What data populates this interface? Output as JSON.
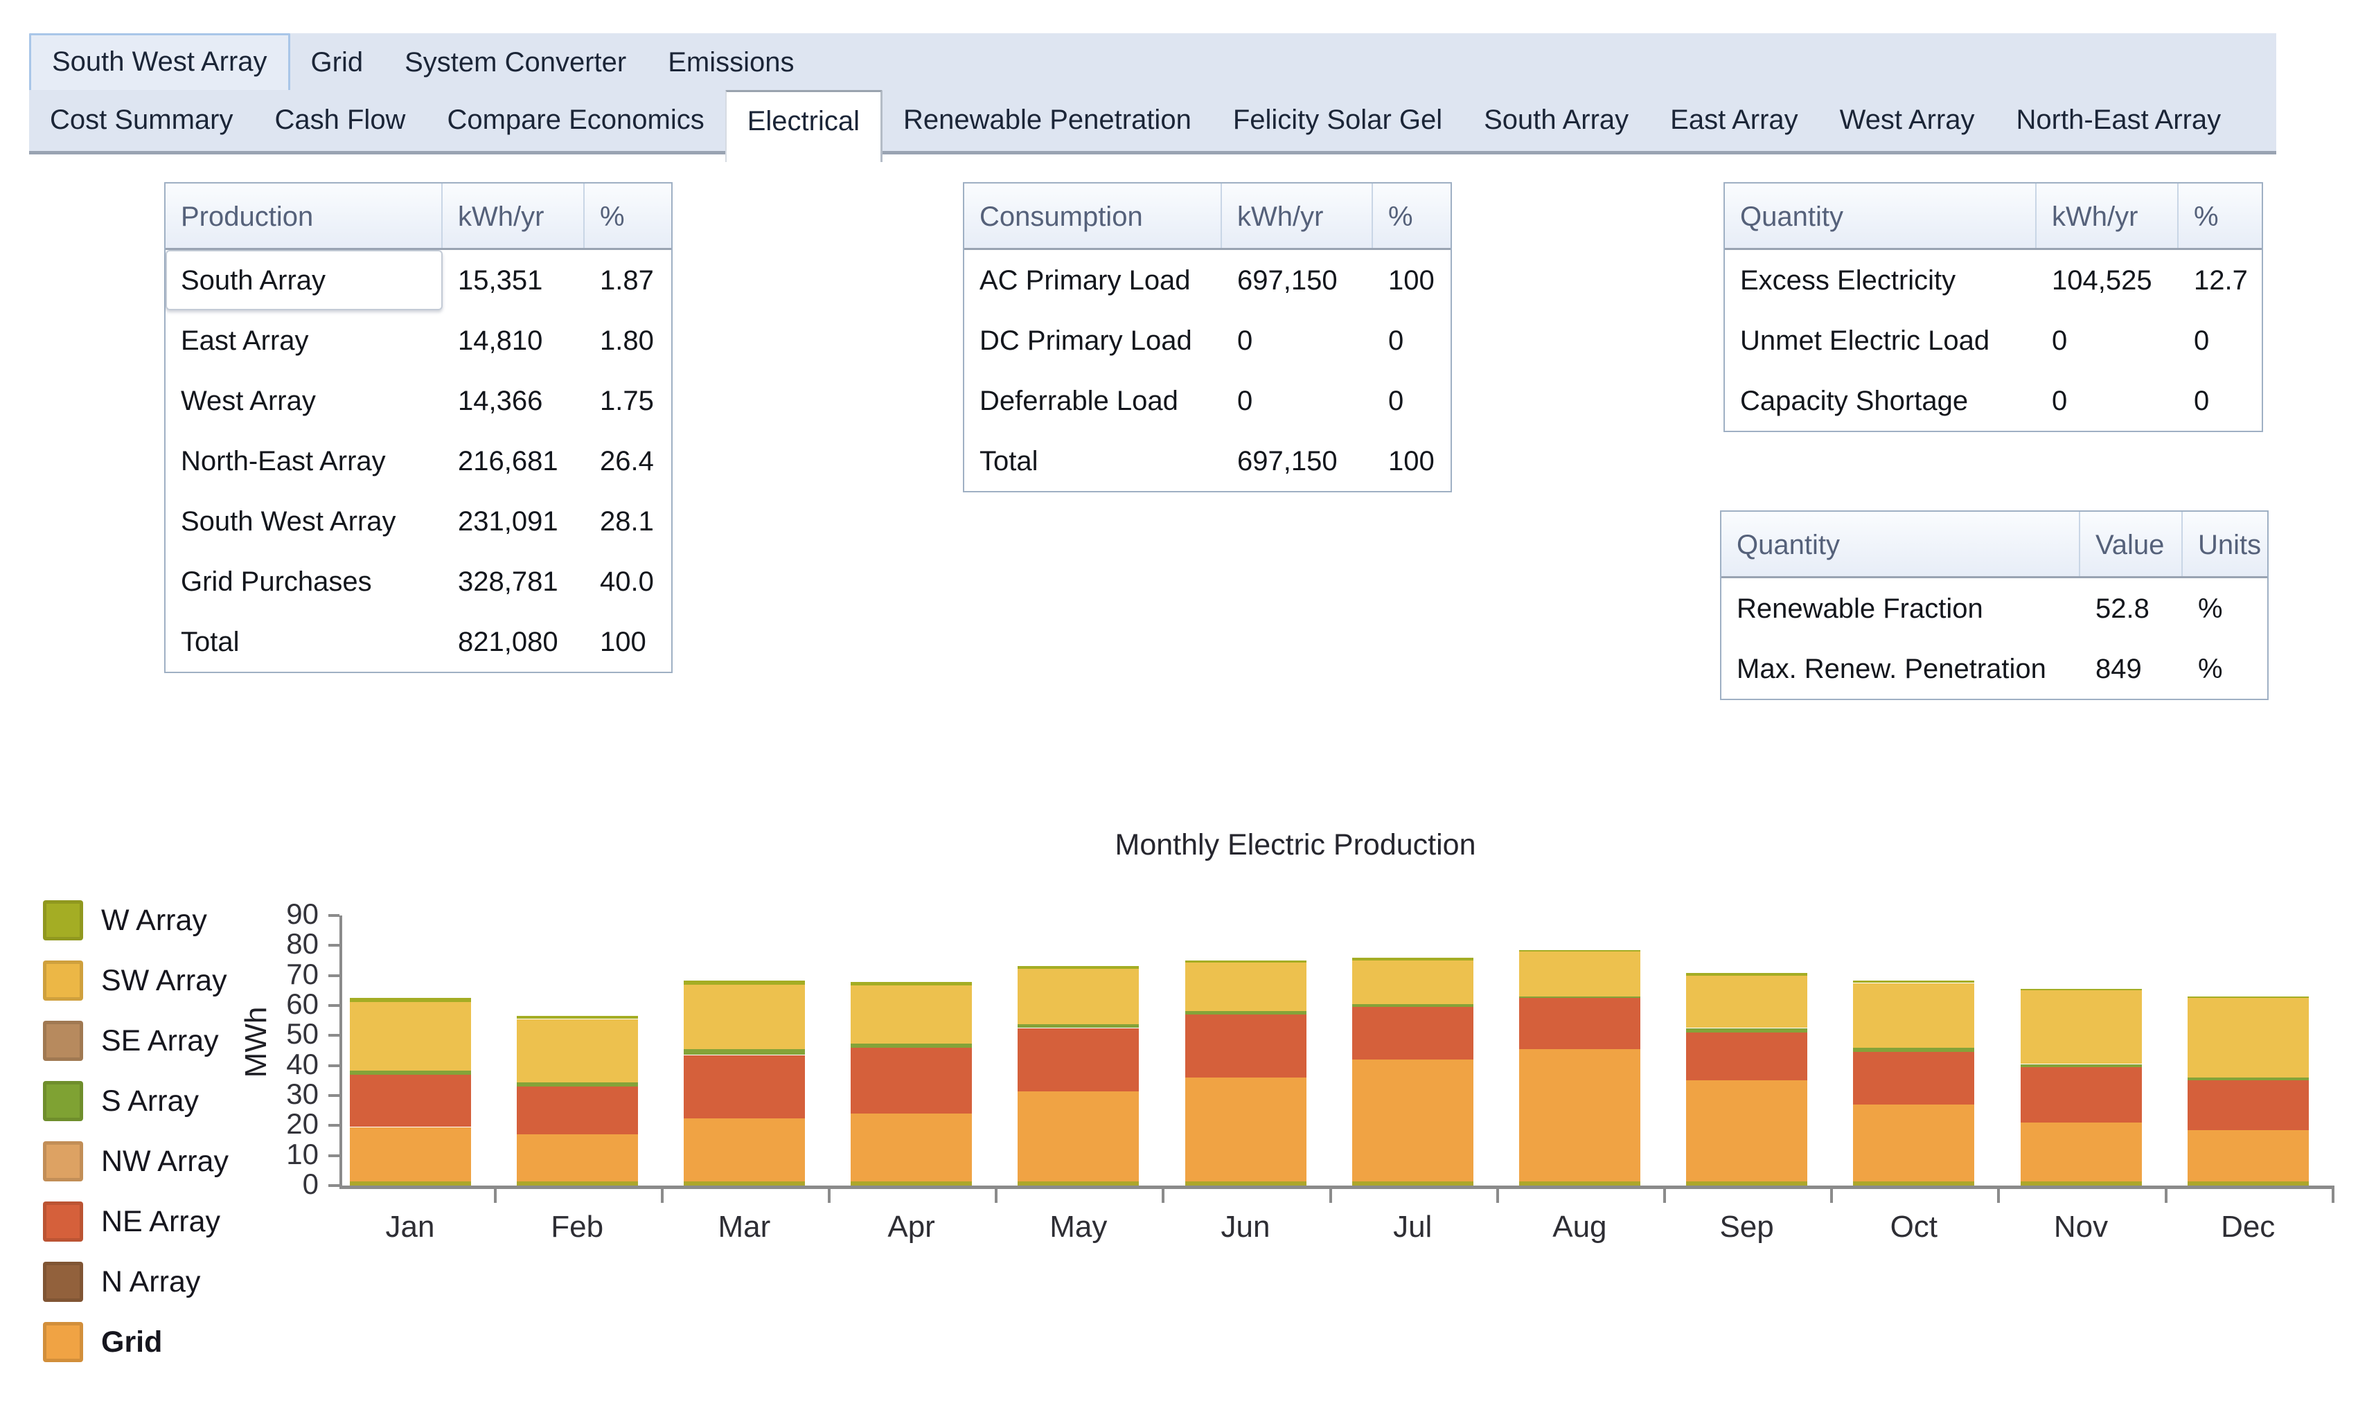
{
  "tabs": {
    "row1": [
      {
        "label": "South West Array",
        "selected": true
      },
      {
        "label": "Grid",
        "selected": false
      },
      {
        "label": "System Converter",
        "selected": false
      },
      {
        "label": "Emissions",
        "selected": false
      }
    ],
    "row2": [
      {
        "label": "Cost Summary",
        "selected": false
      },
      {
        "label": "Cash Flow",
        "selected": false
      },
      {
        "label": "Compare Economics",
        "selected": false
      },
      {
        "label": "Electrical",
        "selected": true
      },
      {
        "label": "Renewable Penetration",
        "selected": false
      },
      {
        "label": "Felicity Solar Gel",
        "selected": false
      },
      {
        "label": "South Array",
        "selected": false
      },
      {
        "label": "East Array",
        "selected": false
      },
      {
        "label": "West Array",
        "selected": false
      },
      {
        "label": "North-East Array",
        "selected": false
      }
    ]
  },
  "tables": {
    "production": {
      "headers": [
        "Production",
        "kWh/yr",
        "%"
      ],
      "rows": [
        [
          "South Array",
          "15,351",
          "1.87"
        ],
        [
          "East Array",
          "14,810",
          "1.80"
        ],
        [
          "West Array",
          "14,366",
          "1.75"
        ],
        [
          "North-East Array",
          "216,681",
          "26.4"
        ],
        [
          "South West Array",
          "231,091",
          "28.1"
        ],
        [
          "Grid Purchases",
          "328,781",
          "40.0"
        ],
        [
          "Total",
          "821,080",
          "100"
        ]
      ],
      "selected_cell": "South Array"
    },
    "consumption": {
      "headers": [
        "Consumption",
        "kWh/yr",
        "%"
      ],
      "rows": [
        [
          "AC Primary Load",
          "697,150",
          "100"
        ],
        [
          "DC Primary Load",
          "0",
          "0"
        ],
        [
          "Deferrable Load",
          "0",
          "0"
        ],
        [
          "Total",
          "697,150",
          "100"
        ]
      ]
    },
    "quantity_kwh": {
      "headers": [
        "Quantity",
        "kWh/yr",
        "%"
      ],
      "rows": [
        [
          "Excess Electricity",
          "104,525",
          "12.7"
        ],
        [
          "Unmet Electric Load",
          "0",
          "0"
        ],
        [
          "Capacity Shortage",
          "0",
          "0"
        ]
      ]
    },
    "quantity_value": {
      "headers": [
        "Quantity",
        "Value",
        "Units"
      ],
      "rows": [
        [
          "Renewable Fraction",
          "52.8",
          "%"
        ],
        [
          "Max. Renew. Penetration",
          "849",
          "%"
        ]
      ]
    }
  },
  "chart_data": {
    "type": "bar",
    "stacked": true,
    "title": "Monthly Electric Production",
    "xlabel": "",
    "ylabel": "MWh",
    "ylim": [
      0,
      90
    ],
    "ytick_step": 10,
    "grid": false,
    "legend_position": "left",
    "categories": [
      "Jan",
      "Feb",
      "Mar",
      "Apr",
      "May",
      "Jun",
      "Jul",
      "Aug",
      "Sep",
      "Oct",
      "Nov",
      "Dec"
    ],
    "series": [
      {
        "name": "Grid",
        "color": "#F0A344",
        "values": [
          19.5,
          17.0,
          22.5,
          24.0,
          31.5,
          36.0,
          42.0,
          45.5,
          35.0,
          27.0,
          21.0,
          18.5
        ]
      },
      {
        "name": "NE Array",
        "color": "#D5603B",
        "values": [
          17.5,
          16.0,
          21.0,
          22.0,
          21.0,
          21.0,
          17.5,
          17.0,
          16.0,
          17.5,
          18.5,
          16.5
        ]
      },
      {
        "name": "S Array",
        "color": "#84A339",
        "values": [
          1.2,
          1.5,
          2.0,
          1.2,
          1.2,
          1.2,
          1.0,
          0.5,
          1.5,
          1.5,
          1.0,
          1.0
        ]
      },
      {
        "name": "SW Array",
        "color": "#EDC14E",
        "values": [
          23.0,
          21.0,
          21.5,
          19.5,
          18.5,
          16.0,
          14.5,
          15.0,
          17.5,
          21.5,
          24.5,
          26.5
        ]
      },
      {
        "name": "W Array",
        "color": "#A4AD24",
        "values": [
          1.3,
          1.0,
          1.2,
          1.2,
          1.0,
          0.8,
          1.0,
          0.5,
          0.8,
          0.7,
          0.5,
          0.5
        ]
      }
    ],
    "legend": [
      {
        "label": "W Array",
        "color": "#A4AD24",
        "bold": false
      },
      {
        "label": "SW Array",
        "color": "#ECB746",
        "bold": false
      },
      {
        "label": "SE Array",
        "color": "#B78A5E",
        "bold": false
      },
      {
        "label": "S Array",
        "color": "#7FA233",
        "bold": false
      },
      {
        "label": "NW Array",
        "color": "#DDA263",
        "bold": false
      },
      {
        "label": "NE Array",
        "color": "#D5603B",
        "bold": false
      },
      {
        "label": "N Array",
        "color": "#92613C",
        "bold": false
      },
      {
        "label": "Grid",
        "color": "#F0A344",
        "bold": true
      }
    ],
    "baseline_strip_color": "#ADA72B",
    "axis_color": "#8B8B8B"
  }
}
